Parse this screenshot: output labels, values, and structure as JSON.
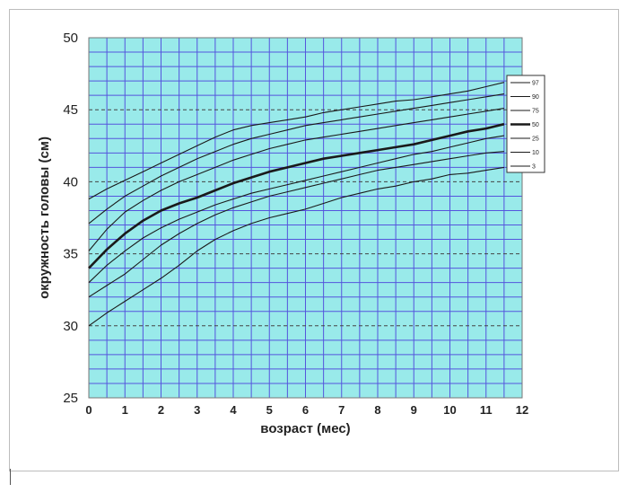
{
  "chart_data": {
    "type": "line",
    "title": "",
    "xlabel": "возраст (мес)",
    "ylabel": "окружность головы (см)",
    "xlim": [
      0,
      12
    ],
    "ylim": [
      25,
      50
    ],
    "x_ticks": [
      "0",
      "1",
      "2",
      "3",
      "4",
      "5",
      "6",
      "7",
      "8",
      "9",
      "10",
      "11",
      "12"
    ],
    "y_ticks": [
      "25",
      "30",
      "35",
      "40",
      "45",
      "50"
    ],
    "grid": true,
    "background": "#99eaea",
    "grid_color": "#5555dd",
    "line_color": "#1a1a1a",
    "legend_position": "right",
    "x": [
      0,
      0.5,
      1,
      1.5,
      2,
      2.5,
      3,
      3.5,
      4,
      4.5,
      5,
      5.5,
      6,
      6.5,
      7,
      7.5,
      8,
      8.5,
      9,
      9.5,
      10,
      10.5,
      11,
      11.5
    ],
    "series": [
      {
        "name": "97",
        "bold": false,
        "values": [
          38.8,
          39.5,
          40.1,
          40.7,
          41.3,
          41.9,
          42.5,
          43.1,
          43.6,
          43.9,
          44.1,
          44.3,
          44.5,
          44.8,
          45.0,
          45.2,
          45.4,
          45.6,
          45.7,
          45.9,
          46.1,
          46.3,
          46.6,
          46.9
        ]
      },
      {
        "name": "90",
        "bold": false,
        "values": [
          37.1,
          38.1,
          39.0,
          39.7,
          40.4,
          41.0,
          41.6,
          42.1,
          42.6,
          43.0,
          43.3,
          43.6,
          43.9,
          44.1,
          44.3,
          44.5,
          44.7,
          44.9,
          45.1,
          45.3,
          45.5,
          45.7,
          45.9,
          46.1
        ]
      },
      {
        "name": "75",
        "bold": false,
        "values": [
          35.2,
          36.7,
          37.9,
          38.7,
          39.4,
          40.0,
          40.5,
          41.0,
          41.5,
          41.9,
          42.3,
          42.6,
          42.9,
          43.1,
          43.3,
          43.5,
          43.7,
          43.9,
          44.1,
          44.3,
          44.5,
          44.7,
          44.9,
          45.1
        ]
      },
      {
        "name": "50",
        "bold": true,
        "values": [
          34.0,
          35.3,
          36.4,
          37.3,
          38.0,
          38.5,
          38.9,
          39.4,
          39.9,
          40.3,
          40.7,
          41.0,
          41.3,
          41.6,
          41.8,
          42.0,
          42.2,
          42.4,
          42.6,
          42.9,
          43.2,
          43.5,
          43.7,
          44.0
        ]
      },
      {
        "name": "25",
        "bold": false,
        "values": [
          33.0,
          34.2,
          35.2,
          36.1,
          36.8,
          37.4,
          37.9,
          38.4,
          38.8,
          39.2,
          39.5,
          39.8,
          40.1,
          40.4,
          40.7,
          41.0,
          41.3,
          41.6,
          41.9,
          42.1,
          42.4,
          42.7,
          43.0,
          43.2
        ]
      },
      {
        "name": "10",
        "bold": false,
        "values": [
          32.0,
          32.8,
          33.6,
          34.6,
          35.6,
          36.4,
          37.1,
          37.7,
          38.2,
          38.6,
          39.0,
          39.3,
          39.6,
          39.9,
          40.2,
          40.5,
          40.8,
          41.0,
          41.2,
          41.4,
          41.6,
          41.8,
          42.0,
          42.1
        ]
      },
      {
        "name": "3",
        "bold": false,
        "values": [
          30.0,
          30.9,
          31.7,
          32.5,
          33.3,
          34.2,
          35.2,
          36.0,
          36.6,
          37.1,
          37.5,
          37.8,
          38.1,
          38.5,
          38.9,
          39.2,
          39.5,
          39.7,
          40.0,
          40.2,
          40.5,
          40.6,
          40.8,
          41.0
        ]
      }
    ]
  }
}
